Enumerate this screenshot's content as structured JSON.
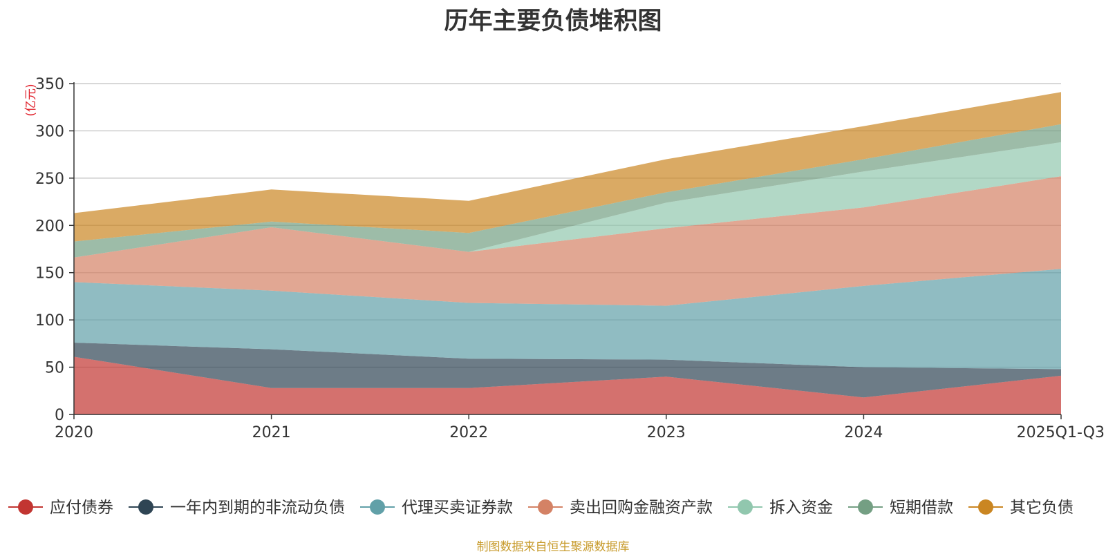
{
  "chart_data": {
    "type": "area",
    "stacked": true,
    "title": "历年主要负债堆积图",
    "ylabel": "(亿元)",
    "xlabel": "",
    "ylim": [
      0,
      350
    ],
    "yticks": [
      0,
      50,
      100,
      150,
      200,
      250,
      300,
      350
    ],
    "categories": [
      "2020",
      "2021",
      "2022",
      "2023",
      "2024",
      "2025Q1-Q3"
    ],
    "series": [
      {
        "name": "应付债券",
        "color": "#c23531",
        "values": [
          61,
          28,
          28,
          40,
          18,
          41
        ]
      },
      {
        "name": "一年内到期的非流动负债",
        "color": "#2f4554",
        "values": [
          15,
          41,
          31,
          18,
          32,
          7
        ]
      },
      {
        "name": "代理买卖证券款",
        "color": "#61a0a8",
        "values": [
          64,
          62,
          59,
          57,
          86,
          106
        ]
      },
      {
        "name": "卖出回购金融资产款",
        "color": "#d48265",
        "values": [
          26,
          67,
          54,
          82,
          83,
          98
        ]
      },
      {
        "name": "拆入资金",
        "color": "#91c7ae",
        "values": [
          0,
          0,
          0,
          27,
          38,
          36
        ]
      },
      {
        "name": "短期借款",
        "color": "#749f83",
        "values": [
          17,
          6,
          20,
          11,
          13,
          19
        ]
      },
      {
        "name": "其它负债",
        "color": "#ca8622",
        "values": [
          30,
          34,
          34,
          35,
          35,
          34
        ]
      }
    ],
    "legend_position": "bottom",
    "grid": true,
    "source_note": "制图数据来自恒生聚源数据库"
  }
}
